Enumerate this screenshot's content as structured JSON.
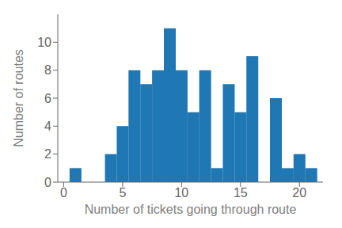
{
  "chart_data": {
    "type": "histogram",
    "bins": [
      0.5,
      1.5,
      2.5,
      3.5,
      4.5,
      5.5,
      6.5,
      7.5,
      8.5,
      9.5,
      10.5,
      11.5,
      12.5,
      13.5,
      14.5,
      15.5,
      16.5,
      17.5,
      18.5,
      19.5,
      20.5,
      21.5
    ],
    "values": [
      1,
      0,
      0,
      2,
      4,
      8,
      7,
      8,
      11,
      8,
      5,
      8,
      1,
      7,
      5,
      9,
      0,
      6,
      1,
      2,
      1
    ],
    "color": "#1f77b4",
    "xlabel": "Number of tickets going through route",
    "ylabel": "Number of routes",
    "xlim": [
      -0.5,
      22
    ],
    "ylim": [
      0,
      12
    ],
    "xticks": [
      0,
      5,
      10,
      15,
      20
    ],
    "yticks": [
      0,
      2,
      4,
      6,
      8,
      10
    ],
    "grid": false
  }
}
